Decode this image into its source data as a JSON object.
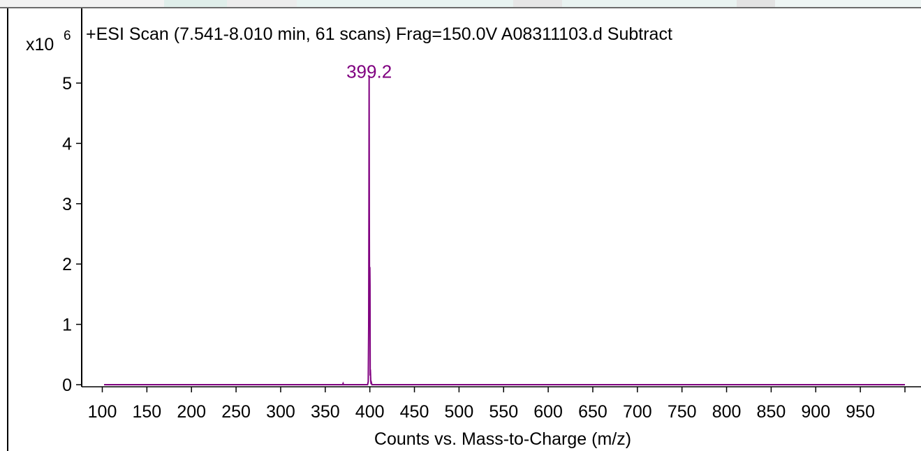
{
  "chart_data": {
    "type": "line",
    "title": "+ESI Scan (7.541-8.010 min, 61 scans) Frag=150.0V A08311103.d  Subtract",
    "xlabel": "Counts vs. Mass-to-Charge (m/z)",
    "ylabel": "",
    "y_scale_label": "x10",
    "y_scale_exponent": "6",
    "xlim": [
      100,
      1000
    ],
    "ylim": [
      0,
      5.3
    ],
    "x_ticks": [
      100,
      150,
      200,
      250,
      300,
      350,
      400,
      450,
      500,
      550,
      600,
      650,
      700,
      750,
      800,
      850,
      900,
      950
    ],
    "x_tick_labels": [
      "100",
      "150",
      "200",
      "250",
      "300",
      "350",
      "400",
      "450",
      "500",
      "550",
      "600",
      "650",
      "700",
      "750",
      "800",
      "850",
      "900",
      "950"
    ],
    "y_ticks": [
      0,
      1,
      2,
      3,
      4,
      5
    ],
    "y_tick_labels": [
      "0",
      "1",
      "2",
      "3",
      "4",
      "5"
    ],
    "grid": false,
    "series": [
      {
        "color": "#800080",
        "x": [
          102,
          369.5,
          370,
          370.5,
          397.5,
          398.2,
          398.7,
          399.0,
          399.2,
          399.4,
          399.7,
          400.0,
          400.2,
          400.4,
          400.6,
          401.0,
          401.4,
          401.8,
          402.3,
          1000
        ],
        "y": [
          0,
          0,
          0.02,
          0,
          0,
          0.05,
          1.0,
          3.1,
          5.12,
          2.9,
          1.25,
          1.95,
          1.65,
          0.15,
          0.25,
          0.07,
          0.01,
          0.03,
          0,
          0
        ]
      }
    ],
    "annotations": [
      {
        "text": "399.2",
        "x": 399.2,
        "y": 5.12,
        "color": "#800080"
      }
    ]
  }
}
